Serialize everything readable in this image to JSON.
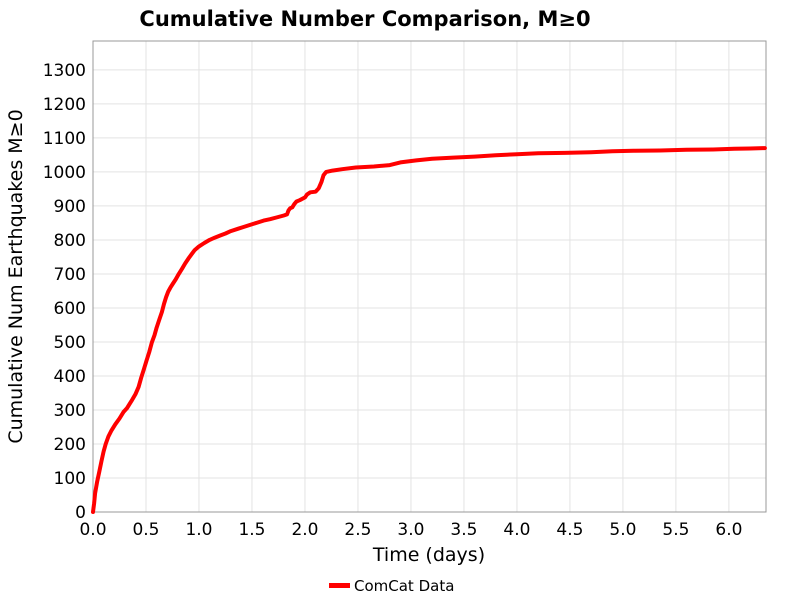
{
  "chart_data": {
    "type": "line",
    "title": "Cumulative Number Comparison, M≥0",
    "xlabel": "Time (days)",
    "ylabel": "Cumulative Num Earthquakes M≥0",
    "xlim": [
      0,
      6.35
    ],
    "ylim": [
      0,
      1385
    ],
    "x_tick_labels": [
      "0.0",
      "0.5",
      "1.0",
      "1.5",
      "2.0",
      "2.5",
      "3.0",
      "3.5",
      "4.0",
      "4.5",
      "5.0",
      "5.5",
      "6.0"
    ],
    "x_tick_values": [
      0,
      0.5,
      1.0,
      1.5,
      2.0,
      2.5,
      3.0,
      3.5,
      4.0,
      4.5,
      5.0,
      5.5,
      6.0
    ],
    "y_tick_labels": [
      "0",
      "100",
      "200",
      "300",
      "400",
      "500",
      "600",
      "700",
      "800",
      "900",
      "1000",
      "1100",
      "1200",
      "1300"
    ],
    "y_tick_values": [
      0,
      100,
      200,
      300,
      400,
      500,
      600,
      700,
      800,
      900,
      1000,
      1100,
      1200,
      1300
    ],
    "grid": true,
    "legend": {
      "position": "bottom-center",
      "entries": [
        {
          "label": "ComCat Data",
          "color": "#ff0000"
        }
      ]
    },
    "colors": {
      "line": "#ff0000",
      "grid": "#e3e3e3",
      "spine": "#999999",
      "text": "#000000",
      "background": "#ffffff"
    },
    "series": [
      {
        "name": "ComCat Data",
        "color": "#ff0000",
        "line_width": 4,
        "points": [
          [
            0.0,
            0
          ],
          [
            0.01,
            25
          ],
          [
            0.02,
            55
          ],
          [
            0.04,
            90
          ],
          [
            0.06,
            120
          ],
          [
            0.08,
            150
          ],
          [
            0.1,
            178
          ],
          [
            0.12,
            200
          ],
          [
            0.145,
            222
          ],
          [
            0.175,
            240
          ],
          [
            0.21,
            258
          ],
          [
            0.25,
            275
          ],
          [
            0.29,
            295
          ],
          [
            0.32,
            305
          ],
          [
            0.345,
            318
          ],
          [
            0.37,
            330
          ],
          [
            0.4,
            346
          ],
          [
            0.43,
            368
          ],
          [
            0.455,
            395
          ],
          [
            0.48,
            420
          ],
          [
            0.505,
            445
          ],
          [
            0.53,
            470
          ],
          [
            0.555,
            498
          ],
          [
            0.58,
            520
          ],
          [
            0.6,
            542
          ],
          [
            0.625,
            565
          ],
          [
            0.65,
            588
          ],
          [
            0.67,
            612
          ],
          [
            0.69,
            632
          ],
          [
            0.71,
            648
          ],
          [
            0.73,
            660
          ],
          [
            0.755,
            672
          ],
          [
            0.78,
            684
          ],
          [
            0.81,
            700
          ],
          [
            0.84,
            715
          ],
          [
            0.87,
            731
          ],
          [
            0.9,
            745
          ],
          [
            0.93,
            758
          ],
          [
            0.96,
            770
          ],
          [
            1.0,
            781
          ],
          [
            1.05,
            791
          ],
          [
            1.1,
            800
          ],
          [
            1.15,
            807
          ],
          [
            1.2,
            813
          ],
          [
            1.25,
            819
          ],
          [
            1.3,
            826
          ],
          [
            1.37,
            833
          ],
          [
            1.42,
            838
          ],
          [
            1.49,
            845
          ],
          [
            1.55,
            851
          ],
          [
            1.61,
            857
          ],
          [
            1.67,
            861
          ],
          [
            1.73,
            866
          ],
          [
            1.8,
            872
          ],
          [
            1.83,
            875
          ],
          [
            1.845,
            887
          ],
          [
            1.86,
            893
          ],
          [
            1.88,
            896
          ],
          [
            1.9,
            906
          ],
          [
            1.92,
            913
          ],
          [
            1.95,
            917
          ],
          [
            2.0,
            925
          ],
          [
            2.02,
            934
          ],
          [
            2.05,
            940
          ],
          [
            2.1,
            942
          ],
          [
            2.13,
            952
          ],
          [
            2.155,
            970
          ],
          [
            2.175,
            990
          ],
          [
            2.2,
            1000
          ],
          [
            2.26,
            1004
          ],
          [
            2.35,
            1008
          ],
          [
            2.48,
            1013
          ],
          [
            2.65,
            1016
          ],
          [
            2.8,
            1020
          ],
          [
            2.9,
            1028
          ],
          [
            3.05,
            1034
          ],
          [
            3.2,
            1039
          ],
          [
            3.4,
            1042
          ],
          [
            3.6,
            1045
          ],
          [
            3.8,
            1049
          ],
          [
            4.0,
            1052
          ],
          [
            4.2,
            1055
          ],
          [
            4.45,
            1056
          ],
          [
            4.7,
            1058
          ],
          [
            4.9,
            1061
          ],
          [
            5.1,
            1062
          ],
          [
            5.35,
            1063
          ],
          [
            5.6,
            1065
          ],
          [
            5.85,
            1066
          ],
          [
            6.05,
            1068
          ],
          [
            6.2,
            1069
          ],
          [
            6.34,
            1070
          ]
        ]
      }
    ]
  }
}
